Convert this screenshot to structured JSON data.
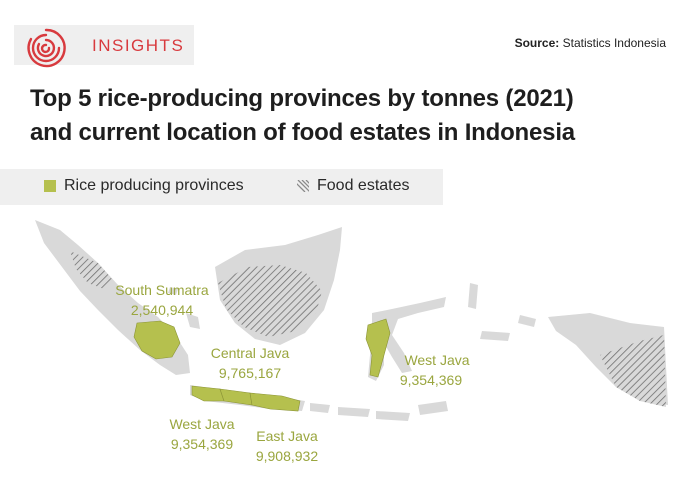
{
  "brand": {
    "name": "INSIGHTS",
    "icon": "spiral-logo-icon",
    "color": "#d83a3e"
  },
  "source": {
    "prefix": "Source:",
    "text": "Statistics Indonesia"
  },
  "title": {
    "line1": "Top 5 rice-producing provinces by tonnes (2021)",
    "line2": "and current location of food estates in Indonesia"
  },
  "legend": {
    "rice": {
      "label": "Rice producing provinces",
      "color": "#b5c04e"
    },
    "food": {
      "label": "Food estates",
      "color": "#8a8a8a"
    }
  },
  "colors": {
    "land": "#d9d9d9",
    "rice": "#b5c04e",
    "hatch": "#6f6f6f",
    "label": "#9aa63f"
  },
  "map_labels": {
    "south_sumatra": {
      "name": "South Sumatra",
      "value": "2,540,944"
    },
    "central_java": {
      "name": "Central Java",
      "value": "9,765,167"
    },
    "west_java_sulawesi": {
      "name": "West Java",
      "value": "9,354,369"
    },
    "west_java": {
      "name": "West Java",
      "value": "9,354,369"
    },
    "east_java": {
      "name": "East Java",
      "value": "9,908,932"
    }
  }
}
